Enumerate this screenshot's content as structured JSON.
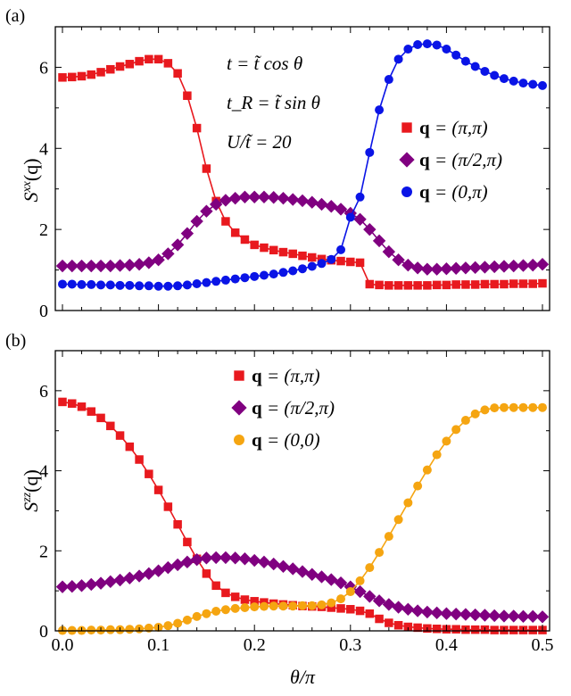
{
  "chart_data": [
    {
      "type": "line",
      "panel_label": "(a)",
      "ylabel": "S^{xx}(q)",
      "ylabel_base": "S",
      "ylabel_sup": "xx",
      "ylabel_arg": "(q)",
      "xlabel": "",
      "xlim": [
        0,
        0.5
      ],
      "ylim": [
        0,
        7
      ],
      "yticks": [
        0,
        2,
        4,
        6
      ],
      "xticks": [
        0.0,
        0.1,
        0.2,
        0.3,
        0.4,
        0.5
      ],
      "show_xtick_labels": false,
      "annotations": [
        "t = t̃ cos θ",
        "t_R = t̃ sin θ",
        "U/t̃ = 20"
      ],
      "legend_position": "right",
      "x": [
        0.0,
        0.01,
        0.02,
        0.03,
        0.04,
        0.05,
        0.06,
        0.07,
        0.08,
        0.09,
        0.1,
        0.11,
        0.12,
        0.13,
        0.14,
        0.15,
        0.16,
        0.17,
        0.18,
        0.19,
        0.2,
        0.21,
        0.22,
        0.23,
        0.24,
        0.25,
        0.26,
        0.27,
        0.28,
        0.29,
        0.3,
        0.31,
        0.32,
        0.33,
        0.34,
        0.35,
        0.36,
        0.37,
        0.38,
        0.39,
        0.4,
        0.41,
        0.42,
        0.43,
        0.44,
        0.45,
        0.46,
        0.47,
        0.48,
        0.49,
        0.5
      ],
      "series": [
        {
          "name": "q = (π, π)",
          "label": "(π,π)",
          "color": "#e8191e",
          "marker": "square",
          "values": [
            5.75,
            5.76,
            5.78,
            5.82,
            5.88,
            5.95,
            6.02,
            6.08,
            6.15,
            6.2,
            6.2,
            6.1,
            5.85,
            5.3,
            4.5,
            3.5,
            2.7,
            2.2,
            1.92,
            1.75,
            1.62,
            1.55,
            1.49,
            1.44,
            1.4,
            1.35,
            1.31,
            1.27,
            1.24,
            1.22,
            1.2,
            1.18,
            0.65,
            0.63,
            0.62,
            0.62,
            0.62,
            0.62,
            0.62,
            0.63,
            0.63,
            0.64,
            0.64,
            0.64,
            0.65,
            0.65,
            0.65,
            0.66,
            0.66,
            0.66,
            0.67
          ]
        },
        {
          "name": "q = (π/2, π)",
          "label": "(π/2,π)",
          "color": "#800080",
          "marker": "diamond",
          "values": [
            1.1,
            1.1,
            1.1,
            1.1,
            1.1,
            1.1,
            1.11,
            1.12,
            1.14,
            1.18,
            1.25,
            1.4,
            1.62,
            1.9,
            2.2,
            2.45,
            2.62,
            2.72,
            2.77,
            2.8,
            2.8,
            2.8,
            2.79,
            2.77,
            2.74,
            2.71,
            2.67,
            2.62,
            2.57,
            2.5,
            2.4,
            2.25,
            2.0,
            1.72,
            1.45,
            1.25,
            1.12,
            1.05,
            1.02,
            1.02,
            1.03,
            1.04,
            1.05,
            1.06,
            1.07,
            1.08,
            1.09,
            1.1,
            1.11,
            1.12,
            1.14
          ]
        },
        {
          "name": "q = (0, π)",
          "label": "(0,π)",
          "color": "#0a14e6",
          "marker": "circle",
          "values": [
            0.65,
            0.65,
            0.64,
            0.64,
            0.63,
            0.63,
            0.62,
            0.62,
            0.61,
            0.61,
            0.6,
            0.6,
            0.61,
            0.63,
            0.66,
            0.69,
            0.72,
            0.75,
            0.78,
            0.81,
            0.84,
            0.87,
            0.9,
            0.94,
            0.98,
            1.03,
            1.09,
            1.16,
            1.26,
            1.5,
            2.3,
            2.8,
            3.9,
            4.95,
            5.7,
            6.2,
            6.45,
            6.56,
            6.58,
            6.55,
            6.45,
            6.3,
            6.15,
            6.02,
            5.9,
            5.8,
            5.72,
            5.66,
            5.61,
            5.58,
            5.55
          ]
        }
      ]
    },
    {
      "type": "line",
      "panel_label": "(b)",
      "ylabel": "S^{zz}(q)",
      "ylabel_base": "S",
      "ylabel_sup": "zz",
      "ylabel_arg": "(q)",
      "xlabel": "θ/π",
      "xlim": [
        0,
        0.5
      ],
      "ylim": [
        0,
        7
      ],
      "yticks": [
        0,
        2,
        4,
        6
      ],
      "xticks": [
        0.0,
        0.1,
        0.2,
        0.3,
        0.4,
        0.5
      ],
      "xtick_labels": [
        "0.0",
        "0.1",
        "0.2",
        "0.3",
        "0.4",
        "0.5"
      ],
      "show_xtick_labels": true,
      "legend_position": "top-center",
      "x": [
        0.0,
        0.01,
        0.02,
        0.03,
        0.04,
        0.05,
        0.06,
        0.07,
        0.08,
        0.09,
        0.1,
        0.11,
        0.12,
        0.13,
        0.14,
        0.15,
        0.16,
        0.17,
        0.18,
        0.19,
        0.2,
        0.21,
        0.22,
        0.23,
        0.24,
        0.25,
        0.26,
        0.27,
        0.28,
        0.29,
        0.3,
        0.31,
        0.32,
        0.33,
        0.34,
        0.35,
        0.36,
        0.37,
        0.38,
        0.39,
        0.4,
        0.41,
        0.42,
        0.43,
        0.44,
        0.45,
        0.46,
        0.47,
        0.48,
        0.49,
        0.5
      ],
      "series": [
        {
          "name": "q = (π, π)",
          "label": "(π,π)",
          "color": "#e8191e",
          "marker": "square",
          "values": [
            5.72,
            5.68,
            5.6,
            5.48,
            5.32,
            5.12,
            4.88,
            4.6,
            4.28,
            3.92,
            3.52,
            3.1,
            2.66,
            2.22,
            1.8,
            1.43,
            1.13,
            0.95,
            0.85,
            0.78,
            0.74,
            0.71,
            0.68,
            0.66,
            0.64,
            0.62,
            0.61,
            0.6,
            0.58,
            0.56,
            0.54,
            0.5,
            0.43,
            0.3,
            0.2,
            0.14,
            0.1,
            0.08,
            0.06,
            0.05,
            0.04,
            0.04,
            0.03,
            0.03,
            0.03,
            0.02,
            0.02,
            0.02,
            0.02,
            0.02,
            0.02
          ]
        },
        {
          "name": "q = (π/2, π)",
          "label": "(π/2,π)",
          "color": "#800080",
          "marker": "diamond",
          "values": [
            1.1,
            1.11,
            1.13,
            1.16,
            1.19,
            1.23,
            1.27,
            1.32,
            1.37,
            1.43,
            1.5,
            1.58,
            1.65,
            1.72,
            1.78,
            1.82,
            1.83,
            1.83,
            1.82,
            1.8,
            1.76,
            1.72,
            1.67,
            1.61,
            1.55,
            1.48,
            1.41,
            1.35,
            1.28,
            1.2,
            1.1,
            0.98,
            0.86,
            0.75,
            0.66,
            0.59,
            0.54,
            0.5,
            0.47,
            0.45,
            0.43,
            0.42,
            0.41,
            0.4,
            0.39,
            0.38,
            0.37,
            0.37,
            0.36,
            0.36,
            0.35
          ]
        },
        {
          "name": "q = (0, 0)",
          "label": "(0,0)",
          "color": "#f5a511",
          "marker": "circle",
          "values": [
            0.01,
            0.01,
            0.01,
            0.02,
            0.02,
            0.03,
            0.03,
            0.04,
            0.05,
            0.07,
            0.09,
            0.13,
            0.19,
            0.27,
            0.36,
            0.43,
            0.49,
            0.53,
            0.56,
            0.58,
            0.6,
            0.61,
            0.62,
            0.62,
            0.62,
            0.63,
            0.63,
            0.65,
            0.7,
            0.8,
            0.98,
            1.25,
            1.58,
            1.96,
            2.36,
            2.78,
            3.2,
            3.62,
            4.02,
            4.4,
            4.74,
            5.03,
            5.26,
            5.42,
            5.52,
            5.57,
            5.58,
            5.58,
            5.58,
            5.58,
            5.58
          ]
        }
      ]
    }
  ]
}
